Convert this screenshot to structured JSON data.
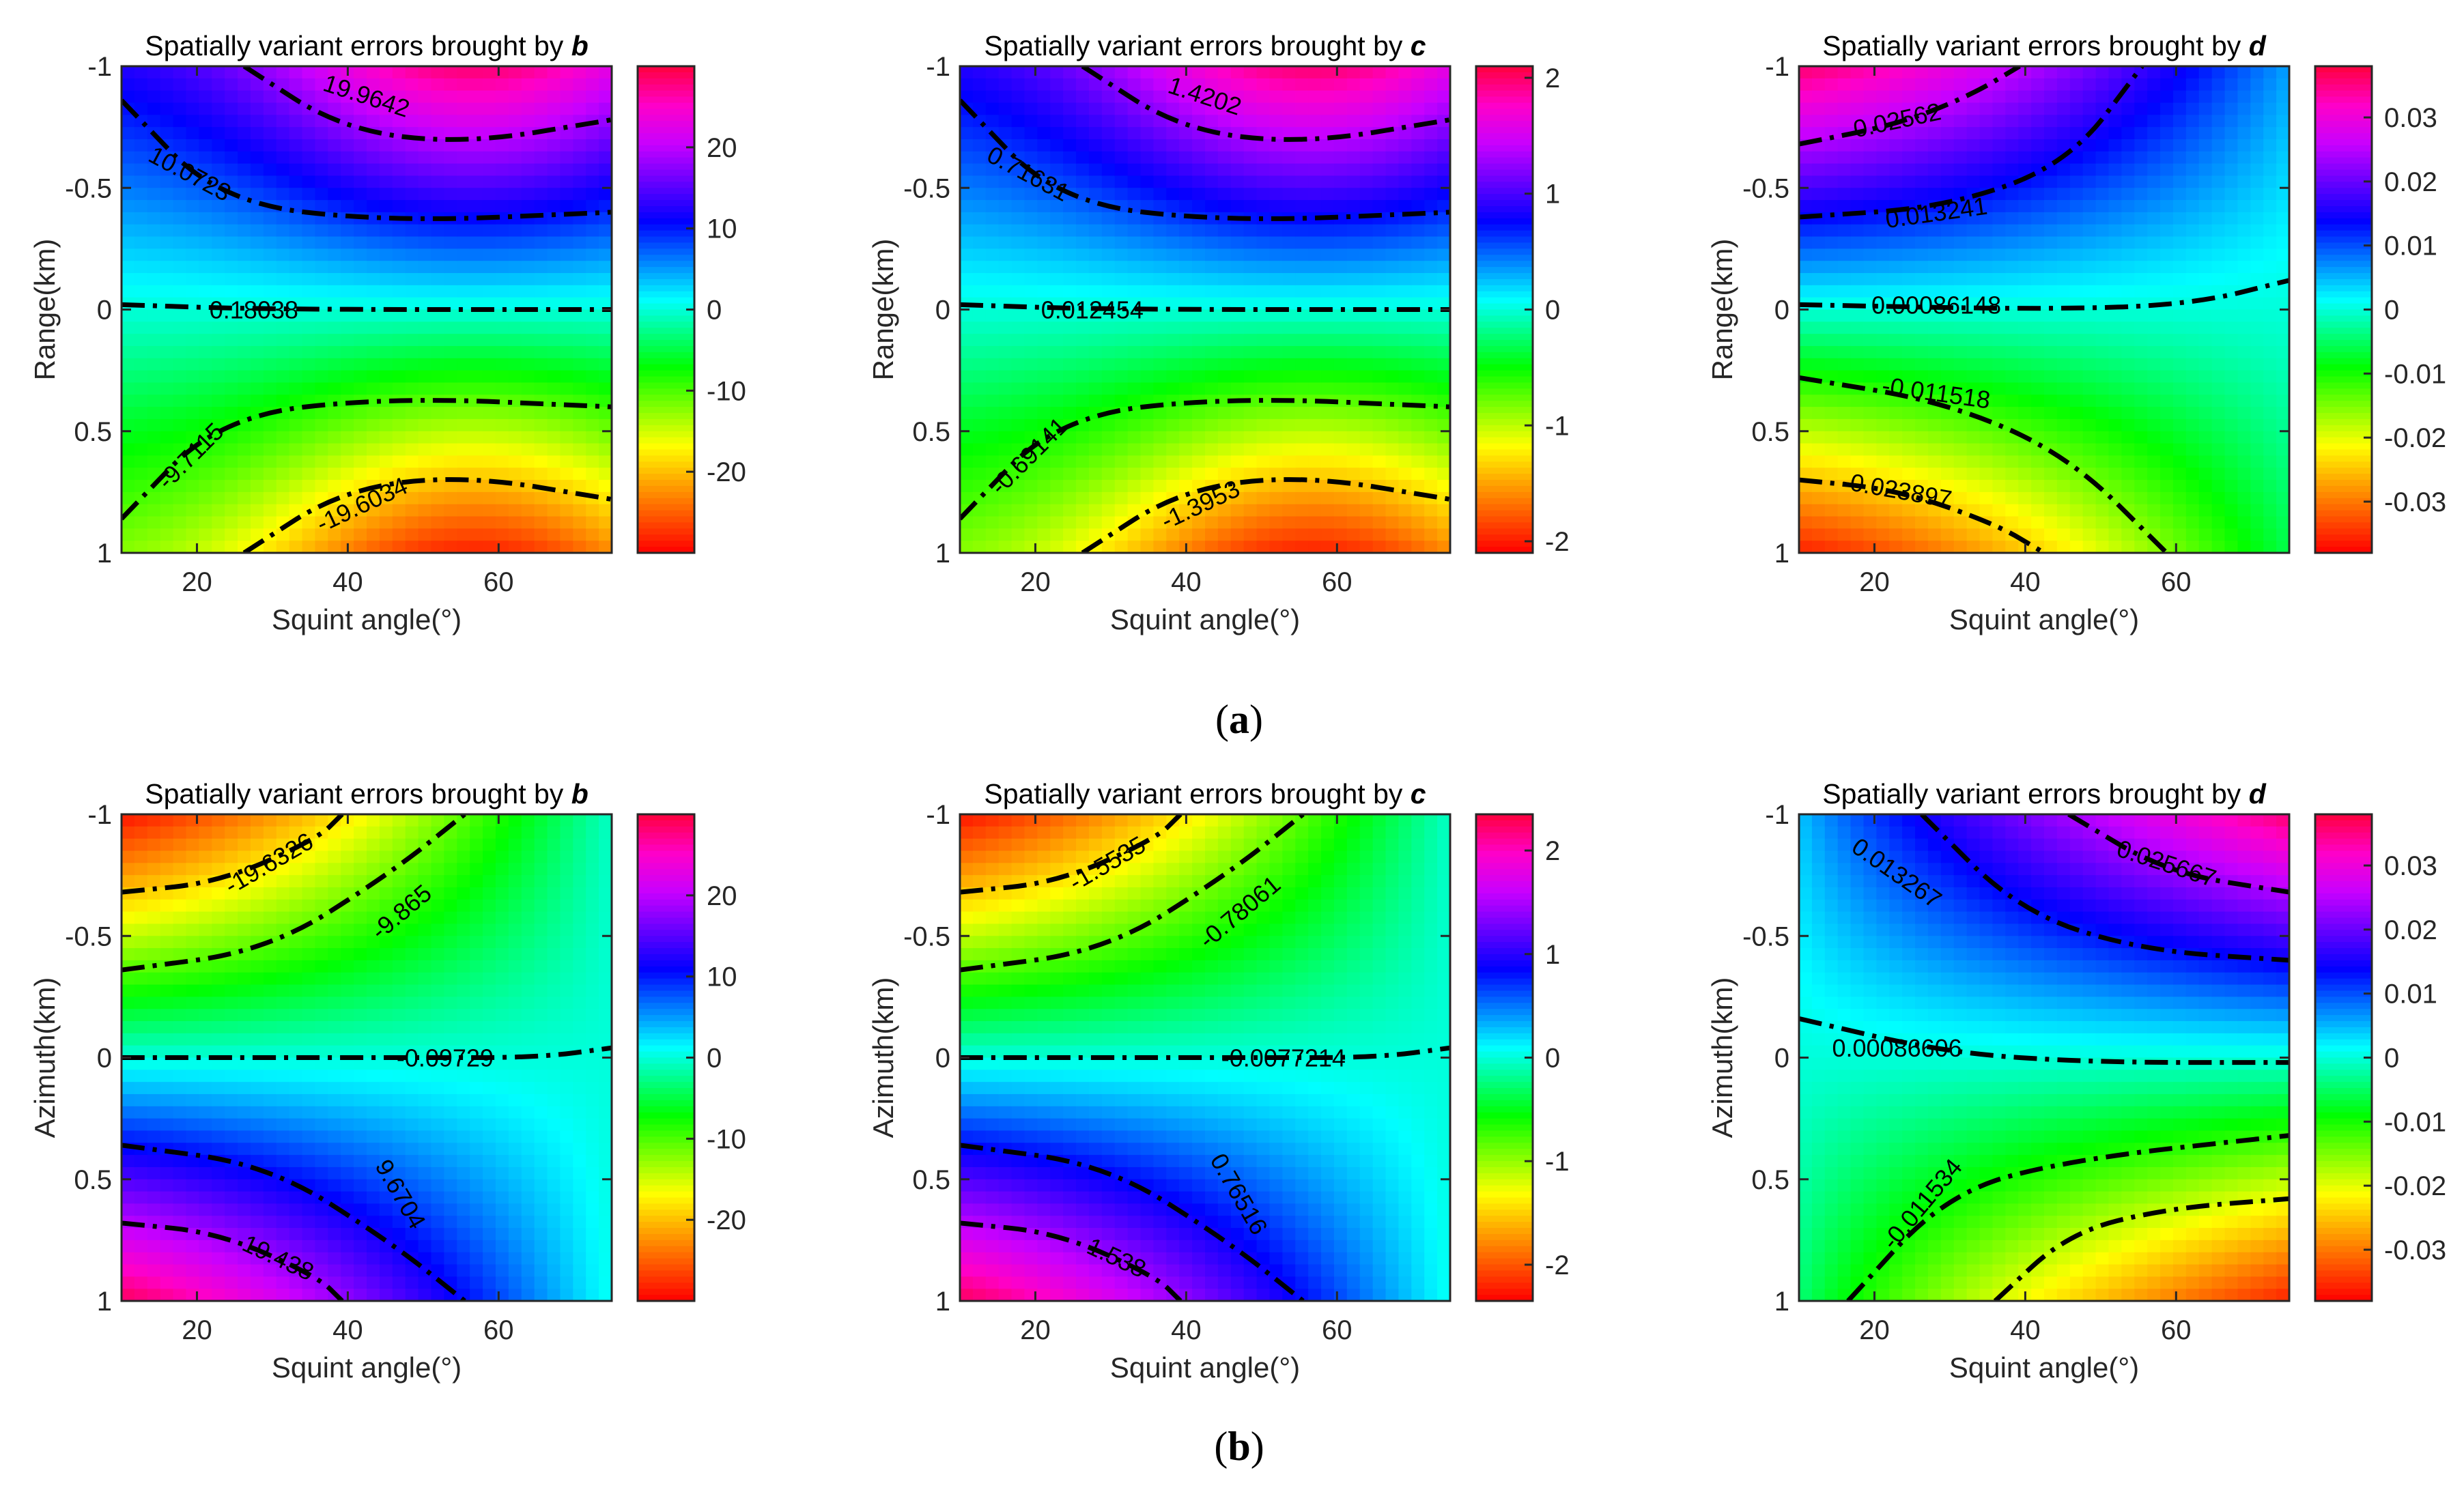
{
  "figure": {
    "row_labels": [
      {
        "open": "(",
        "letter": "a",
        "close": ")"
      },
      {
        "open": "(",
        "letter": "b",
        "close": ")"
      }
    ]
  },
  "chart_data": [
    {
      "type": "heatmap",
      "row": "a",
      "col": 0,
      "title_prefix": "Spatially variant errors brought by ",
      "title_var": "b",
      "xlabel": "Squint angle(°)",
      "ylabel": "Range(km)",
      "xlim": [
        10,
        75
      ],
      "ylim": [
        -1,
        1
      ],
      "xticks": [
        "20",
        "40",
        "60"
      ],
      "yticks": [
        "-1",
        "-0.5",
        "0",
        "0.5",
        "1"
      ],
      "colorbar_range": [
        -30,
        30
      ],
      "colorbar_ticks": [
        "20",
        "10",
        "0",
        "-10",
        "-20"
      ],
      "contour_labels": [
        "19.9642",
        "10.0723",
        "0.18038",
        "-9.7115",
        "-19.6034"
      ]
    },
    {
      "type": "heatmap",
      "row": "a",
      "col": 1,
      "title_prefix": "Spatially variant errors brought by ",
      "title_var": "c",
      "xlabel": "Squint angle(°)",
      "ylabel": "Range(km)",
      "xlim": [
        10,
        75
      ],
      "ylim": [
        -1,
        1
      ],
      "xticks": [
        "20",
        "40",
        "60"
      ],
      "yticks": [
        "-1",
        "-0.5",
        "0",
        "0.5",
        "1"
      ],
      "colorbar_range": [
        -2.1,
        2.1
      ],
      "colorbar_ticks": [
        "2",
        "1",
        "0",
        "-1",
        "-2"
      ],
      "contour_labels": [
        "1.4202",
        "0.71631",
        "0.012454",
        "-0.69141",
        "-1.3953"
      ]
    },
    {
      "type": "heatmap",
      "row": "a",
      "col": 2,
      "title_prefix": "Spatially variant errors brought by ",
      "title_var": "d",
      "xlabel": "Squint angle(°)",
      "ylabel": "Range(km)",
      "xlim": [
        10,
        75
      ],
      "ylim": [
        -1,
        1
      ],
      "xticks": [
        "20",
        "40",
        "60"
      ],
      "yticks": [
        "-1",
        "-0.5",
        "0",
        "0.5",
        "1"
      ],
      "colorbar_range": [
        -0.038,
        0.038
      ],
      "colorbar_ticks": [
        "0.03",
        "0.02",
        "0.01",
        "0",
        "-0.01",
        "-0.02",
        "-0.03"
      ],
      "contour_labels": [
        "0.02562",
        "0.013241",
        "0.00086148",
        "-0.011518",
        "-0.023897"
      ]
    },
    {
      "type": "heatmap",
      "row": "b",
      "col": 0,
      "title_prefix": "Spatially variant errors brought by ",
      "title_var": "b",
      "xlabel": "Squint angle(°)",
      "ylabel": "Azimuth(km)",
      "xlim": [
        10,
        75
      ],
      "ylim": [
        -1,
        1
      ],
      "xticks": [
        "20",
        "40",
        "60"
      ],
      "yticks": [
        "-1",
        "-0.5",
        "0",
        "0.5",
        "1"
      ],
      "colorbar_range": [
        -30,
        30
      ],
      "colorbar_ticks": [
        "20",
        "10",
        "0",
        "-10",
        "-20"
      ],
      "contour_labels": [
        "-19.6326",
        "-9.865",
        "-0.09729",
        "9.6704",
        "19.438"
      ]
    },
    {
      "type": "heatmap",
      "row": "b",
      "col": 1,
      "title_prefix": "Spatially variant errors brought by ",
      "title_var": "c",
      "xlabel": "Squint angle(°)",
      "ylabel": "Azimuth(km)",
      "xlim": [
        10,
        75
      ],
      "ylim": [
        -1,
        1
      ],
      "xticks": [
        "20",
        "40",
        "60"
      ],
      "yticks": [
        "-1",
        "-0.5",
        "0",
        "0.5",
        "1"
      ],
      "colorbar_range": [
        -2.35,
        2.35
      ],
      "colorbar_ticks": [
        "2",
        "1",
        "0",
        "-1",
        "-2"
      ],
      "contour_labels": [
        "-1.5535",
        "-0.78061",
        "-0.0077214",
        "0.76516",
        "1.538"
      ]
    },
    {
      "type": "heatmap",
      "row": "b",
      "col": 2,
      "title_prefix": "Spatially variant errors brought by ",
      "title_var": "d",
      "xlabel": "Squint angle(°)",
      "ylabel": "Azimuth(km)",
      "xlim": [
        10,
        75
      ],
      "ylim": [
        -1,
        1
      ],
      "xticks": [
        "20",
        "40",
        "60"
      ],
      "yticks": [
        "-1",
        "-0.5",
        "0",
        "0.5",
        "1"
      ],
      "colorbar_range": [
        -0.038,
        0.038
      ],
      "colorbar_ticks": [
        "0.03",
        "0.02",
        "0.01",
        "0",
        "-0.01",
        "-0.02",
        "-0.03"
      ],
      "contour_labels": [
        "0.025667",
        "0.013267",
        "0.00086606",
        "-0.011534"
      ]
    }
  ]
}
